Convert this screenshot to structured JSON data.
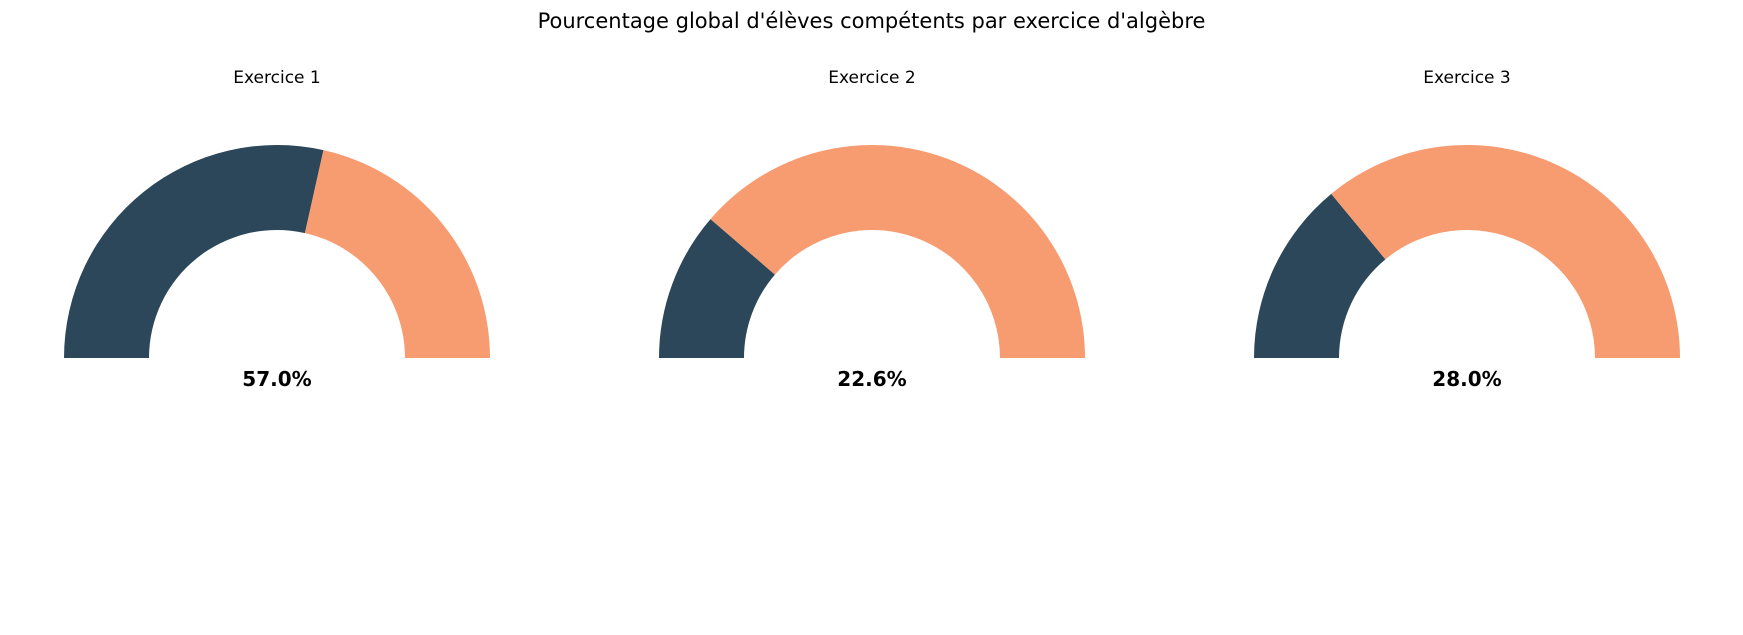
{
  "chart_data": {
    "type": "gauge",
    "title": "Pourcentage global d'élèves compétents par exercice d'algèbre",
    "colors": {
      "competent": "#2b4759",
      "remaining": "#f79b70"
    },
    "gauges": [
      {
        "title": "Exercice 1",
        "value": 57.0,
        "label": "57.0%"
      },
      {
        "title": "Exercice 2",
        "value": 22.6,
        "label": "22.6%"
      },
      {
        "title": "Exercice 3",
        "value": 28.0,
        "label": "28.0%"
      }
    ]
  }
}
